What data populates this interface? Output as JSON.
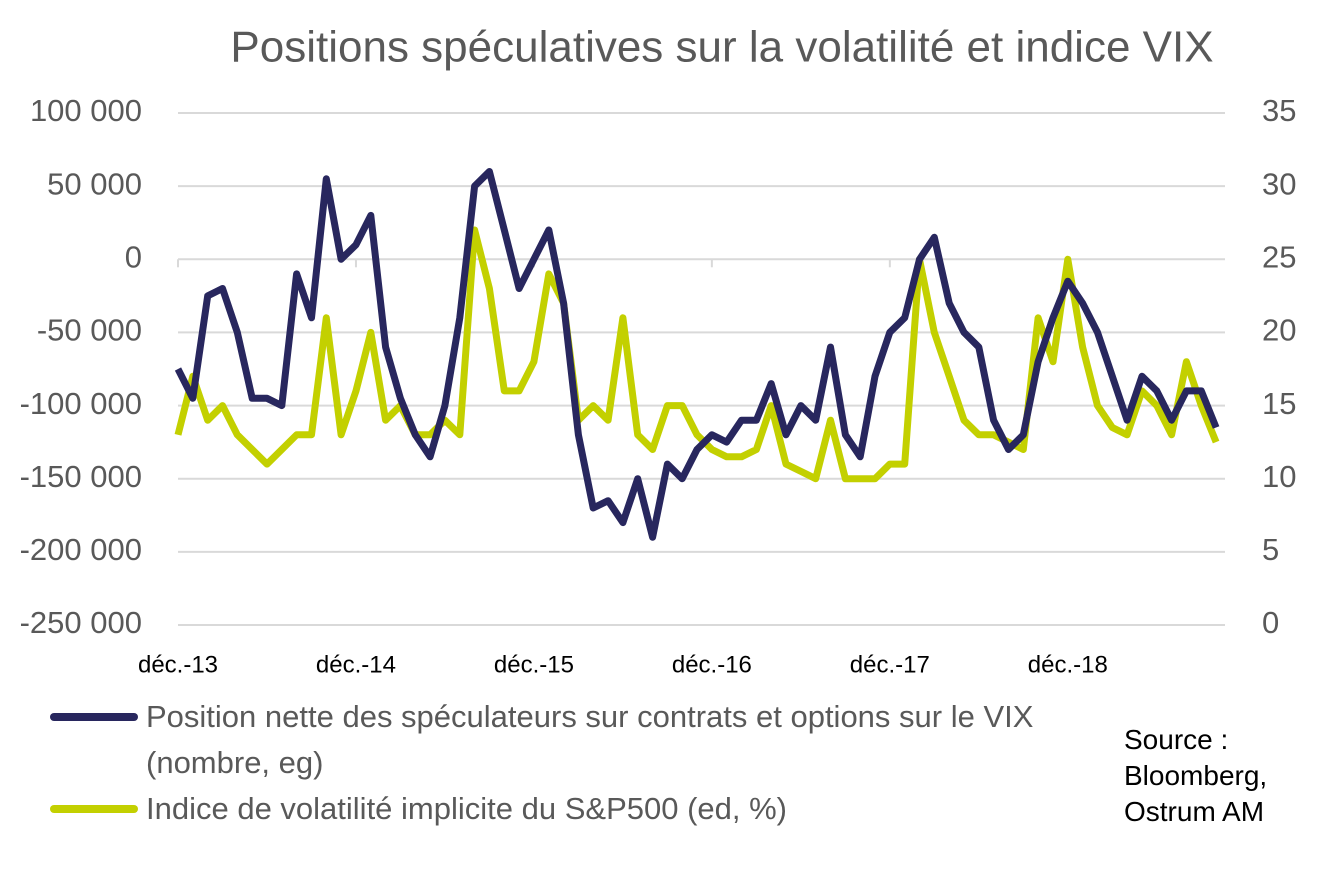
{
  "chart_data": {
    "type": "line",
    "title": "Positions spéculatives sur la volatilité et indice VIX",
    "categories": [
      "déc.-13",
      null,
      null,
      null,
      null,
      null,
      null,
      null,
      null,
      null,
      null,
      null,
      "déc.-14",
      null,
      null,
      null,
      null,
      null,
      null,
      null,
      null,
      null,
      null,
      null,
      "déc.-15",
      null,
      null,
      null,
      null,
      null,
      null,
      null,
      null,
      null,
      null,
      null,
      "déc.-16",
      null,
      null,
      null,
      null,
      null,
      null,
      null,
      null,
      null,
      null,
      null,
      "déc.-17",
      null,
      null,
      null,
      null,
      null,
      null,
      null,
      null,
      null,
      null,
      null,
      "déc.-18",
      null,
      null,
      null,
      null,
      null,
      null,
      null,
      null,
      null,
      null
    ],
    "series": [
      {
        "name": "Position nette des spéculateurs sur contrats et options sur le VIX (nombre, eg)",
        "color": "#28275e",
        "axis": "y",
        "values": [
          -75000,
          -95000,
          -25000,
          -20000,
          -50000,
          -95000,
          -95000,
          -100000,
          -10000,
          -40000,
          55000,
          0,
          10000,
          30000,
          -60000,
          -95000,
          -120000,
          -135000,
          -100000,
          -40000,
          50000,
          60000,
          20000,
          -20000,
          0,
          20000,
          -30000,
          -120000,
          -170000,
          -165000,
          -180000,
          -150000,
          -190000,
          -140000,
          -150000,
          -130000,
          -120000,
          -125000,
          -110000,
          -110000,
          -85000,
          -120000,
          -100000,
          -110000,
          -60000,
          -120000,
          -135000,
          -80000,
          -50000,
          -40000,
          0,
          15000,
          -30000,
          -50000,
          -60000,
          -110000,
          -130000,
          -120000,
          -70000,
          -40000,
          -15000,
          -30000,
          -50000,
          -80000,
          -110000,
          -80000,
          -90000,
          -110000,
          -90000,
          -90000,
          -115000
        ]
      },
      {
        "name": "Indice de volatilité implicite du S&P500 (ed, %)",
        "color": "#c3d000",
        "axis": "y2",
        "values": [
          13,
          17,
          14,
          15,
          13,
          12,
          11,
          12,
          13,
          13,
          21,
          13,
          16,
          20,
          14,
          15,
          13,
          13,
          14,
          13,
          27,
          23,
          16,
          16,
          18,
          24,
          22,
          14,
          15,
          14,
          21,
          13,
          12,
          15,
          15,
          13,
          12,
          11.5,
          11.5,
          12,
          15,
          11,
          10.5,
          10,
          14,
          10,
          10,
          10,
          11,
          11,
          25,
          20,
          17,
          14,
          13,
          13,
          12.5,
          12,
          21,
          18,
          25,
          19,
          15,
          13.5,
          13,
          16,
          15,
          13,
          18,
          15,
          12.5
        ]
      }
    ],
    "ylim": [
      -250000,
      100000
    ],
    "yticks": [
      {
        "value": -250000,
        "label": "-250 000"
      },
      {
        "value": -200000,
        "label": "-200 000"
      },
      {
        "value": -150000,
        "label": "-150 000"
      },
      {
        "value": -100000,
        "label": "-100 000"
      },
      {
        "value": -50000,
        "label": "-50 000"
      },
      0,
      {
        "value": 50000,
        "label": "50 000"
      },
      {
        "value": 100000,
        "label": "100 000"
      }
    ],
    "y2lim": [
      0,
      35
    ],
    "y2ticks": [
      0,
      5,
      10,
      15,
      20,
      25,
      30,
      35
    ],
    "grid": true,
    "annotation": "Source : Bloomberg, Ostrum AM"
  }
}
